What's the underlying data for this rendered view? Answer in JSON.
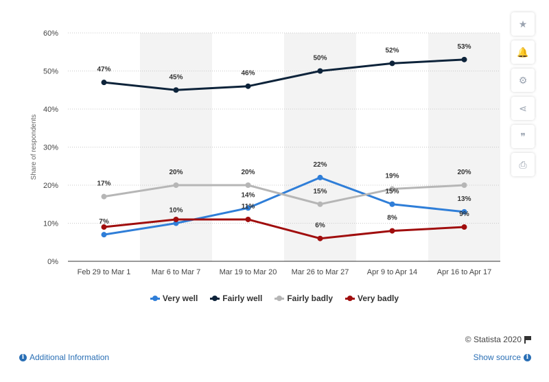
{
  "chart_data": {
    "type": "line",
    "categories": [
      "Feb 29 to Mar 1",
      "Mar 6 to Mar 7",
      "Mar 19 to Mar 20",
      "Mar 26 to Mar 27",
      "Apr 9 to Apr 14",
      "Apr 16 to Apr 17"
    ],
    "series": [
      {
        "name": "Very well",
        "color": "#2f7ed8",
        "values": [
          7,
          10,
          14,
          22,
          15,
          13
        ],
        "labels": [
          "7%",
          "10%",
          "14%",
          "22%",
          "15%",
          "13%"
        ]
      },
      {
        "name": "Fairly well",
        "color": "#0d233a",
        "values": [
          47,
          45,
          46,
          50,
          52,
          53
        ],
        "labels": [
          "47%",
          "45%",
          "46%",
          "50%",
          "52%",
          "53%"
        ]
      },
      {
        "name": "Fairly badly",
        "color": "#b6b6b6",
        "values": [
          17,
          20,
          20,
          15,
          19,
          20
        ],
        "labels": [
          "17%",
          "20%",
          "20%",
          "15%",
          "19%",
          "20%"
        ]
      },
      {
        "name": "Very badly",
        "color": "#a00d0d",
        "values": [
          9,
          11,
          11,
          6,
          8,
          9
        ],
        "labels": [
          "",
          "",
          "11%",
          "6%",
          "8%",
          "9%"
        ]
      }
    ],
    "title": "",
    "xlabel": "",
    "ylabel": "Share of respondents",
    "ylim": [
      0,
      60
    ],
    "yticks": [
      0,
      10,
      20,
      30,
      40,
      50,
      60
    ],
    "ytick_labels": [
      "0%",
      "10%",
      "20%",
      "30%",
      "40%",
      "50%",
      "60%"
    ],
    "grid": true,
    "legend_position": "bottom"
  },
  "toolbar": {
    "buttons": [
      {
        "name": "star-icon",
        "glyph": "★"
      },
      {
        "name": "bell-icon",
        "glyph": "🔔"
      },
      {
        "name": "gear-icon",
        "glyph": "⚙"
      },
      {
        "name": "share-icon",
        "glyph": "⋖"
      },
      {
        "name": "quote-icon",
        "glyph": "❞"
      },
      {
        "name": "print-icon",
        "glyph": "⎙"
      }
    ]
  },
  "footer": {
    "credit": "© Statista 2020",
    "additional_info": "Additional Information",
    "show_source": "Show source"
  }
}
